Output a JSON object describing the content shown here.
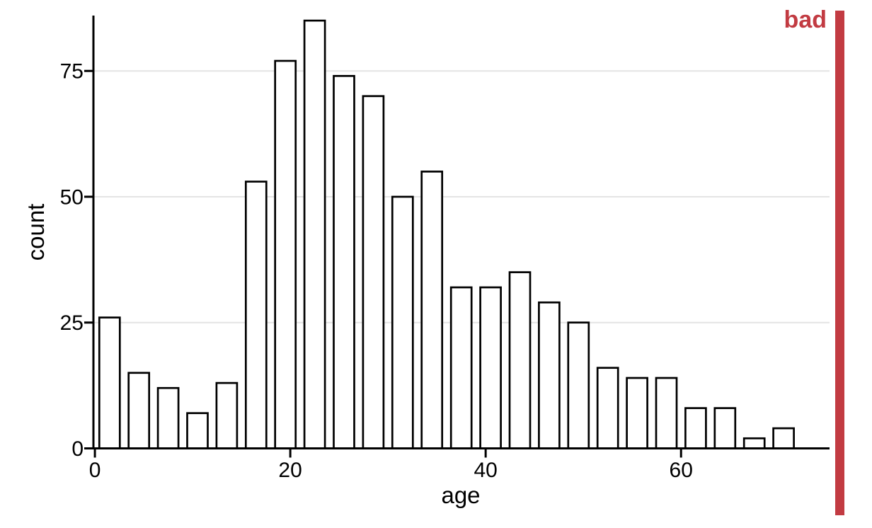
{
  "figure": {
    "annotation": {
      "label": "bad",
      "color": "#c23b42"
    }
  },
  "chart_data": {
    "type": "bar",
    "subtype": "histogram",
    "title": "",
    "xlabel": "age",
    "ylabel": "count",
    "bin_width": 3,
    "bin_starts": [
      0,
      3,
      6,
      9,
      12,
      15,
      18,
      21,
      24,
      27,
      30,
      33,
      36,
      39,
      42,
      45,
      48,
      51,
      54,
      57,
      60,
      63,
      66,
      69
    ],
    "values": [
      26,
      15,
      12,
      7,
      13,
      53,
      77,
      85,
      74,
      70,
      50,
      55,
      32,
      32,
      35,
      29,
      25,
      16,
      14,
      14,
      8,
      8,
      2,
      4
    ],
    "x_ticks": [
      0,
      20,
      40,
      60
    ],
    "y_ticks": [
      0,
      25,
      50,
      75
    ],
    "xlim": [
      -0.15,
      75.2
    ],
    "ylim": [
      0,
      86
    ],
    "grid": "horizontal-only",
    "legend": "none",
    "bar_fill": "#ffffff",
    "bar_stroke": "#000000",
    "grid_color": "#e4e4e4",
    "axis_color": "#000000",
    "text_color": "#000000"
  }
}
